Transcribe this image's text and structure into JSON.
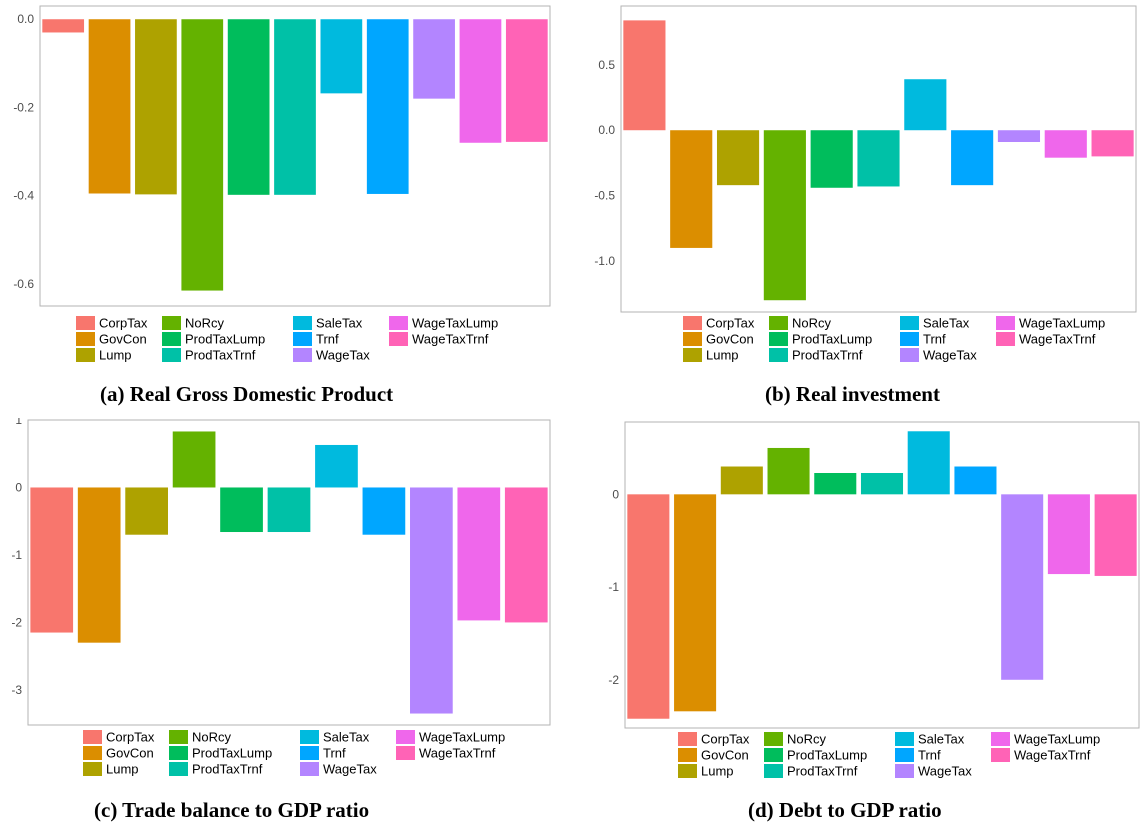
{
  "legend": {
    "columns": [
      [
        "CorpTax",
        "GovCon",
        "Lump"
      ],
      [
        "NoRcy",
        "ProdTaxLump",
        "ProdTaxTrnf"
      ],
      [
        "SaleTax",
        "Trnf",
        "WageTax"
      ],
      [
        "WageTaxLump",
        "WageTaxTrnf"
      ]
    ]
  },
  "colors": {
    "CorpTax": "#F8766D",
    "GovCon": "#DB8E00",
    "Lump": "#AEA200",
    "NoRcy": "#64B200",
    "ProdTaxLump": "#00BD5C",
    "ProdTaxTrnf": "#00C1A7",
    "SaleTax": "#00BADE",
    "Trnf": "#00A6FF",
    "WageTax": "#B385FF",
    "WageTaxLump": "#EF67EB",
    "WageTaxTrnf": "#FF63B6"
  },
  "chart_data": [
    {
      "type": "bar",
      "title": "(a) Real Gross Domestic Product",
      "xlabel": "",
      "ylabel": "",
      "categories": [
        "CorpTax",
        "GovCon",
        "Lump",
        "NoRcy",
        "ProdTaxLump",
        "ProdTaxTrnf",
        "SaleTax",
        "Trnf",
        "WageTax",
        "WageTaxLump",
        "WageTaxTrnf"
      ],
      "values": [
        -0.03,
        -0.395,
        -0.397,
        -0.615,
        -0.398,
        -0.398,
        -0.168,
        -0.396,
        -0.18,
        -0.28,
        -0.278
      ],
      "ylim": [
        -0.65,
        0.03
      ],
      "yticks": [
        0.0,
        -0.2,
        -0.4,
        -0.6
      ],
      "ytick_labels": [
        "0.0",
        "-0.2",
        "-0.4",
        "-0.6"
      ],
      "grid": false,
      "legend_position": "bottom"
    },
    {
      "type": "bar",
      "title": "(b) Real investment",
      "xlabel": "",
      "ylabel": "",
      "categories": [
        "CorpTax",
        "GovCon",
        "Lump",
        "NoRcy",
        "ProdTaxLump",
        "ProdTaxTrnf",
        "SaleTax",
        "Trnf",
        "WageTax",
        "WageTaxLump",
        "WageTaxTrnf"
      ],
      "values": [
        0.84,
        -0.9,
        -0.42,
        -1.3,
        -0.44,
        -0.43,
        0.39,
        -0.42,
        -0.09,
        -0.21,
        -0.2
      ],
      "ylim": [
        -1.39,
        0.95
      ],
      "yticks": [
        0.5,
        0.0,
        -0.5,
        -1.0
      ],
      "ytick_labels": [
        "0.5",
        "0.0",
        "-0.5",
        "-1.0"
      ],
      "grid": false,
      "legend_position": "bottom"
    },
    {
      "type": "bar",
      "title": "(c) Trade balance to GDP ratio",
      "xlabel": "",
      "ylabel": "",
      "categories": [
        "CorpTax",
        "GovCon",
        "Lump",
        "NoRcy",
        "ProdTaxLump",
        "ProdTaxTrnf",
        "SaleTax",
        "Trnf",
        "WageTax",
        "WageTaxLump",
        "WageTaxTrnf"
      ],
      "values": [
        -2.15,
        -2.3,
        -0.7,
        0.83,
        -0.66,
        -0.66,
        0.63,
        -0.7,
        -3.35,
        -1.97,
        -2.0
      ],
      "ylim": [
        -3.52,
        1.0
      ],
      "yticks": [
        1,
        0,
        -1,
        -2,
        -3
      ],
      "ytick_labels": [
        "1",
        "0",
        "-1",
        "-2",
        "-3"
      ],
      "grid": false,
      "legend_position": "bottom"
    },
    {
      "type": "bar",
      "title": "(d) Debt to GDP ratio",
      "xlabel": "",
      "ylabel": "",
      "categories": [
        "CorpTax",
        "GovCon",
        "Lump",
        "NoRcy",
        "ProdTaxLump",
        "ProdTaxTrnf",
        "SaleTax",
        "Trnf",
        "WageTax",
        "WageTaxLump",
        "WageTaxTrnf"
      ],
      "values": [
        -2.42,
        -2.34,
        0.3,
        0.5,
        0.23,
        0.23,
        0.68,
        0.3,
        -2.0,
        -0.86,
        -0.88
      ],
      "ylim": [
        -2.52,
        0.78
      ],
      "yticks": [
        0,
        -1,
        -2
      ],
      "ytick_labels": [
        "0",
        "-1",
        "-2"
      ],
      "grid": false,
      "legend_position": "bottom"
    }
  ]
}
